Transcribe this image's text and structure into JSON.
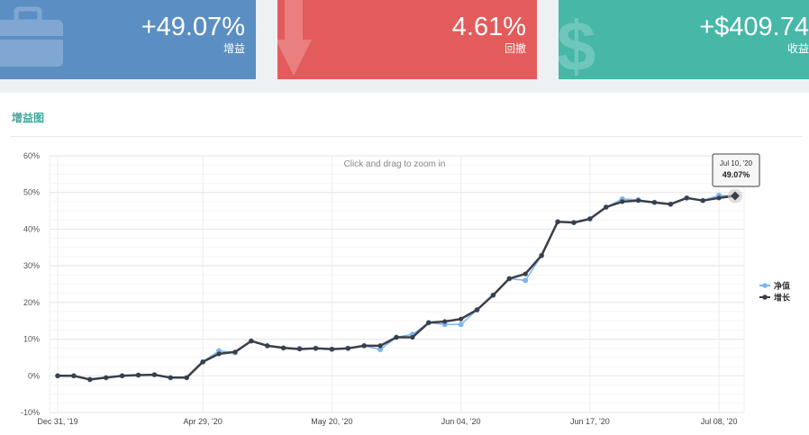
{
  "stats": {
    "gain": {
      "value": "+49.07%",
      "label": "增益",
      "icon": "briefcase-icon"
    },
    "drawdown": {
      "value": "4.61%",
      "label": "回撤",
      "icon": "arrow-down-icon"
    },
    "profit": {
      "value": "+$409.74",
      "label": "收益",
      "icon": "dollar-icon"
    }
  },
  "panel": {
    "title": "增益图",
    "zoom_hint": "Click and drag to zoom in"
  },
  "tooltip": {
    "date": "Jul 10, '20",
    "value": "49.07%"
  },
  "colors": {
    "gain_card": "#5b8fc4",
    "drawdown_card": "#e35b5b",
    "profit_card": "#47b7a8",
    "title": "#3fa89a",
    "net_value_series": "#7cb5ec",
    "growth_series": "#3a3f48"
  },
  "chart_data": {
    "type": "line",
    "y_unit": "%",
    "ylim": [
      -10,
      60
    ],
    "y_ticks": [
      -10,
      0,
      10,
      20,
      30,
      40,
      50,
      60
    ],
    "y_tick_labels": [
      "-10%",
      "0%",
      "10%",
      "20%",
      "30%",
      "40%",
      "50%",
      "60%"
    ],
    "x_tick_labels": [
      "Dec 31, '19",
      "Apr 29, '20",
      "May 20, '20",
      "Jun 04, '20",
      "Jun 17, '20",
      "Jul 08, '20"
    ],
    "x_tick_index": [
      0,
      9,
      17,
      25,
      33,
      41
    ],
    "point_count": 43,
    "legend_position": "right",
    "grid": true,
    "series": [
      {
        "name": "净值",
        "values": [
          0,
          0,
          -1,
          -0.5,
          0,
          0.2,
          0.3,
          -0.5,
          -0.5,
          3.8,
          6.8,
          6.3,
          9.5,
          8.2,
          7.6,
          7.5,
          7.5,
          7.2,
          7.5,
          8.2,
          7.2,
          10.5,
          11.3,
          14.5,
          14,
          14,
          18,
          22,
          26.5,
          26,
          32.8,
          42,
          41.8,
          42.8,
          46,
          48.2,
          48,
          47.3,
          46.8,
          48.5,
          47.8,
          49.2,
          49.07
        ]
      },
      {
        "name": "增长",
        "values": [
          0,
          0,
          -1,
          -0.5,
          0,
          0.2,
          0.3,
          -0.5,
          -0.5,
          3.8,
          6,
          6.5,
          9.5,
          8.2,
          7.6,
          7.3,
          7.5,
          7.3,
          7.5,
          8.2,
          8.2,
          10.5,
          10.5,
          14.5,
          14.8,
          15.5,
          18,
          22,
          26.5,
          27.8,
          32.8,
          42,
          41.8,
          42.8,
          46,
          47.5,
          47.8,
          47.3,
          46.8,
          48.5,
          47.8,
          48.5,
          49.07
        ]
      }
    ]
  }
}
